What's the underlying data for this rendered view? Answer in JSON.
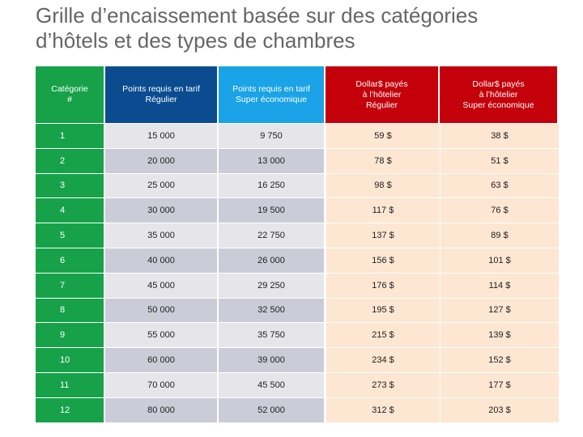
{
  "title_line1": "Grille d’encaissement basée sur des catégories",
  "title_line2": "d’hôtels et des types de chambres",
  "headers": {
    "category": [
      "Catégorie",
      "#"
    ],
    "points_regular": [
      "Points requis en tarif",
      "Régulier"
    ],
    "points_super": [
      "Points requis en tarif",
      "Super économique"
    ],
    "dollars_regular": [
      "Dollar$ payés",
      "à l’hôtelier",
      "Régulier"
    ],
    "dollars_super": [
      "Dollar$ payés",
      "à l’hôtelier",
      "Super économique"
    ]
  },
  "colors": {
    "green": "#17a24a",
    "dark_blue": "#0a4c8f",
    "light_blue": "#1aa3e6",
    "red": "#c4000b",
    "peach": "#fde6d2"
  },
  "rows": [
    {
      "cat": "1",
      "pts_reg": "15 000",
      "pts_sup": "9 750",
      "usd_reg": "59 $",
      "usd_sup": "38 $"
    },
    {
      "cat": "2",
      "pts_reg": "20 000",
      "pts_sup": "13 000",
      "usd_reg": "78 $",
      "usd_sup": "51 $"
    },
    {
      "cat": "3",
      "pts_reg": "25 000",
      "pts_sup": "16 250",
      "usd_reg": "98 $",
      "usd_sup": "63 $"
    },
    {
      "cat": "4",
      "pts_reg": "30 000",
      "pts_sup": "19 500",
      "usd_reg": "117 $",
      "usd_sup": "76 $"
    },
    {
      "cat": "5",
      "pts_reg": "35 000",
      "pts_sup": "22 750",
      "usd_reg": "137 $",
      "usd_sup": "89 $"
    },
    {
      "cat": "6",
      "pts_reg": "40 000",
      "pts_sup": "26 000",
      "usd_reg": "156 $",
      "usd_sup": "101 $"
    },
    {
      "cat": "7",
      "pts_reg": "45 000",
      "pts_sup": "29 250",
      "usd_reg": "176 $",
      "usd_sup": "114 $"
    },
    {
      "cat": "8",
      "pts_reg": "50 000",
      "pts_sup": "32 500",
      "usd_reg": "195 $",
      "usd_sup": "127 $"
    },
    {
      "cat": "9",
      "pts_reg": "55 000",
      "pts_sup": "35 750",
      "usd_reg": "215 $",
      "usd_sup": "139 $"
    },
    {
      "cat": "10",
      "pts_reg": "60 000",
      "pts_sup": "39 000",
      "usd_reg": "234 $",
      "usd_sup": "152 $"
    },
    {
      "cat": "11",
      "pts_reg": "70 000",
      "pts_sup": "45 500",
      "usd_reg": "273 $",
      "usd_sup": "177 $"
    },
    {
      "cat": "12",
      "pts_reg": "80 000",
      "pts_sup": "52 000",
      "usd_reg": "312 $",
      "usd_sup": "203 $"
    }
  ]
}
